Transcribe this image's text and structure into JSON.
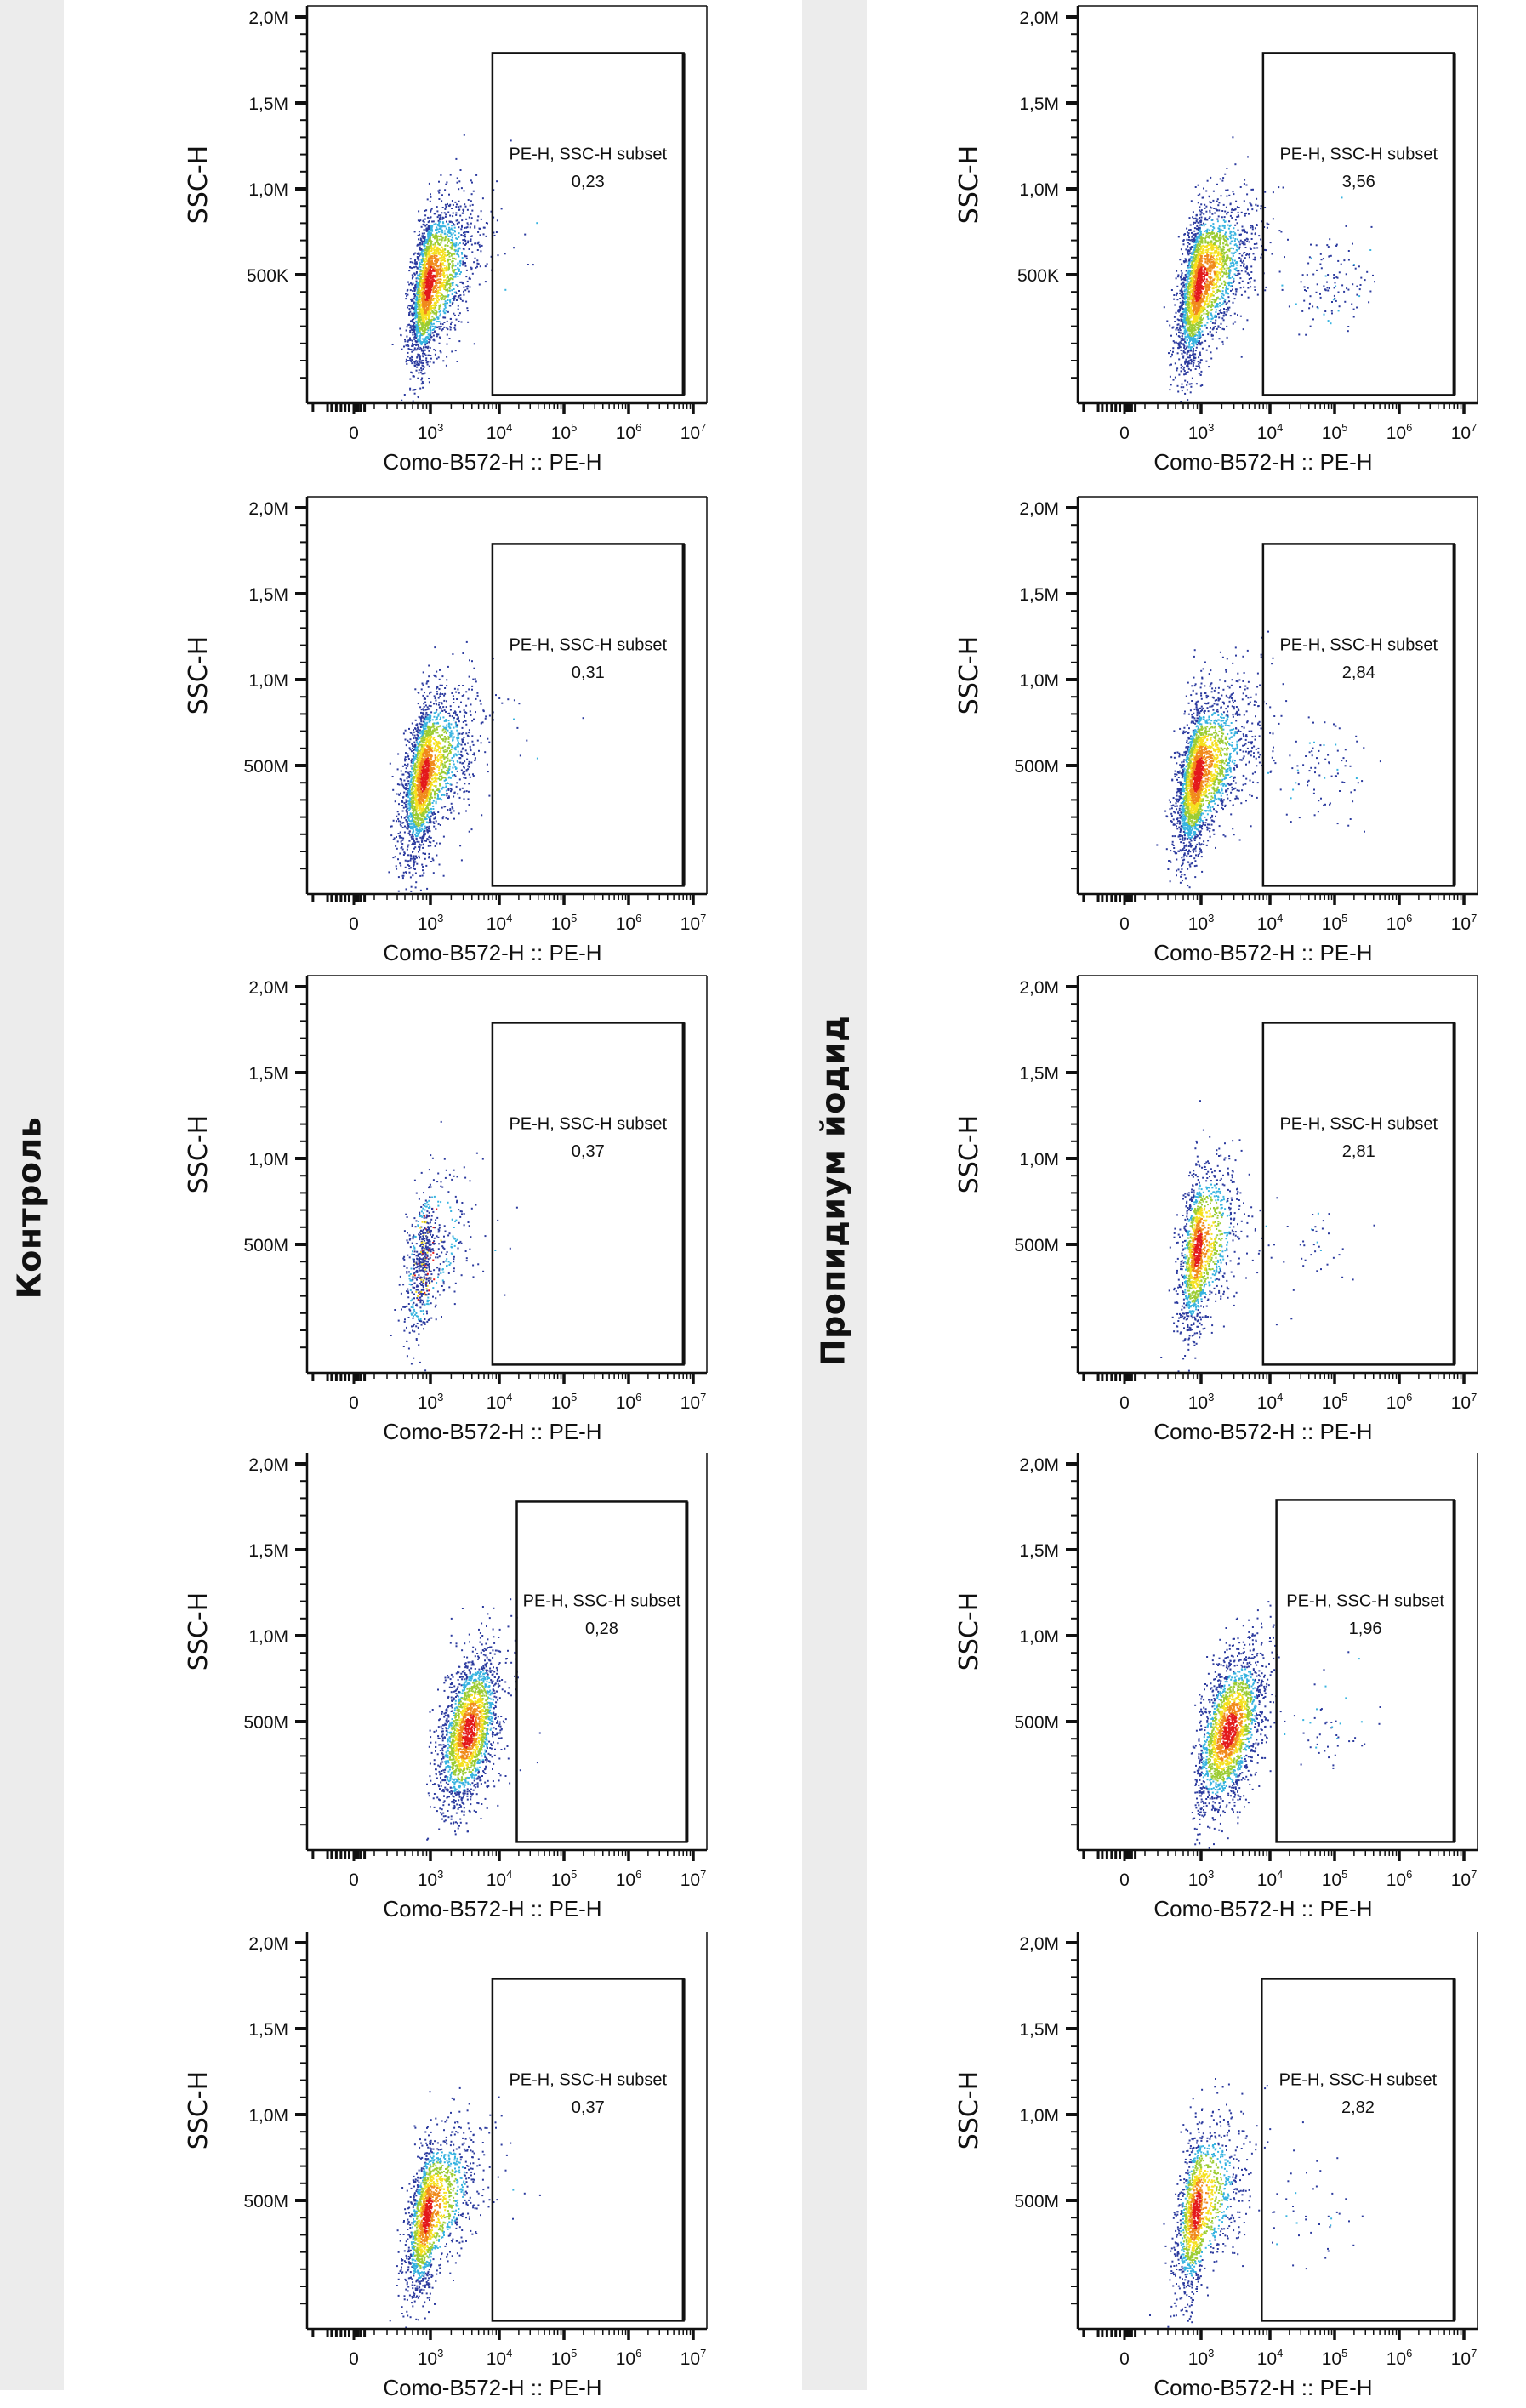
{
  "groups": [
    {
      "label": "Контроль"
    },
    {
      "label": "Пропидиум йодид"
    }
  ],
  "chart_data": {
    "type": "scatter",
    "title": "",
    "xlabel": "Como-B572-H :: PE-H",
    "ylabel": "SSC-H",
    "x_scale": "biexponential (log10 above 10^3)",
    "x_ticks": [
      {
        "label": "0",
        "sup": "",
        "exp": 0
      },
      {
        "label": "10",
        "sup": "3",
        "exp": 3
      },
      {
        "label": "10",
        "sup": "4",
        "exp": 4
      },
      {
        "label": "10",
        "sup": "5",
        "exp": 5
      },
      {
        "label": "10",
        "sup": "6",
        "exp": 6
      },
      {
        "label": "10",
        "sup": "7",
        "exp": 7
      }
    ],
    "ylim_M": [
      -0.25,
      2.06
    ],
    "gate_name": "PE-H, SSC-H subset",
    "panels": [
      {
        "group": 0,
        "row": 0,
        "y_ticks": [
          "2,0M",
          "1,5M",
          "1,0M",
          "500K"
        ],
        "gate_value": "0,23",
        "gate": {
          "x_log": [
            3.9,
            6.85
          ],
          "y_M": [
            -0.2,
            1.79
          ]
        },
        "open_top": false,
        "cluster": {
          "x_log": 2.9,
          "y_M": 0.45,
          "sx": 0.35,
          "sy": 0.2,
          "tilt": 0.35,
          "n": 2600
        },
        "outliers": {
          "x_log": 4.2,
          "y_M": 0.7,
          "n": 12
        }
      },
      {
        "group": 0,
        "row": 1,
        "y_ticks": [
          "2,0M",
          "1,5M",
          "1,0M",
          "500M"
        ],
        "gate_value": "0,31",
        "gate": {
          "x_log": [
            3.9,
            6.85
          ],
          "y_M": [
            -0.2,
            1.79
          ]
        },
        "open_top": false,
        "cluster": {
          "x_log": 2.75,
          "y_M": 0.45,
          "sx": 0.42,
          "sy": 0.2,
          "tilt": 0.3,
          "n": 2600
        },
        "outliers": {
          "x_log": 4.3,
          "y_M": 0.6,
          "n": 10
        }
      },
      {
        "group": 0,
        "row": 2,
        "y_ticks": [
          "2,0M",
          "1,5M",
          "1,0M",
          "500M"
        ],
        "gate_value": "0,37",
        "gate": {
          "x_log": [
            3.9,
            6.85
          ],
          "y_M": [
            -0.2,
            1.79
          ]
        },
        "open_top": false,
        "cluster": {
          "x_log": 2.75,
          "y_M": 0.42,
          "sx": 0.4,
          "sy": 0.2,
          "tilt": 0.3,
          "n": 700
        },
        "outliers": {
          "x_log": 4.0,
          "y_M": 0.6,
          "n": 4
        }
      },
      {
        "group": 0,
        "row": 3,
        "y_ticks": [
          "2,0M",
          "1,5M",
          "1,0M",
          "500M"
        ],
        "gate_value": "0,28",
        "gate": {
          "x_log": [
            4.27,
            6.9
          ],
          "y_M": [
            -0.2,
            1.78
          ]
        },
        "open_top": true,
        "cluster": {
          "x_log": 3.55,
          "y_M": 0.45,
          "sx": 0.22,
          "sy": 0.2,
          "tilt": 0.5,
          "n": 2200
        },
        "outliers": {
          "x_log": 4.5,
          "y_M": 0.4,
          "n": 3
        }
      },
      {
        "group": 0,
        "row": 4,
        "y_ticks": [
          "2,0M",
          "1,5M",
          "1,0M",
          "500M"
        ],
        "gate_value": "0,37",
        "gate": {
          "x_log": [
            3.9,
            6.85
          ],
          "y_M": [
            -0.2,
            1.79
          ]
        },
        "open_top": true,
        "cluster": {
          "x_log": 2.85,
          "y_M": 0.42,
          "sx": 0.4,
          "sy": 0.2,
          "tilt": 0.35,
          "n": 1800
        },
        "outliers": {
          "x_log": 4.3,
          "y_M": 0.6,
          "n": 8
        }
      },
      {
        "group": 1,
        "row": 0,
        "y_ticks": [
          "2,0M",
          "1,5M",
          "1,0M",
          "500K"
        ],
        "gate_value": "3,56",
        "gate": {
          "x_log": [
            3.9,
            6.85
          ],
          "y_M": [
            -0.2,
            1.79
          ]
        },
        "open_top": false,
        "cluster": {
          "x_log": 2.9,
          "y_M": 0.45,
          "sx": 0.4,
          "sy": 0.2,
          "tilt": 0.35,
          "n": 2800
        },
        "outliers": {
          "x_log": 5.0,
          "y_M": 0.45,
          "n": 120
        }
      },
      {
        "group": 1,
        "row": 1,
        "y_ticks": [
          "2,0M",
          "1,5M",
          "1,0M",
          "500M"
        ],
        "gate_value": "2,84",
        "gate": {
          "x_log": [
            3.9,
            6.85
          ],
          "y_M": [
            -0.2,
            1.79
          ]
        },
        "open_top": false,
        "cluster": {
          "x_log": 2.85,
          "y_M": 0.45,
          "sx": 0.42,
          "sy": 0.2,
          "tilt": 0.3,
          "n": 2700
        },
        "outliers": {
          "x_log": 4.8,
          "y_M": 0.5,
          "n": 90
        }
      },
      {
        "group": 1,
        "row": 2,
        "y_ticks": [
          "2,0M",
          "1,5M",
          "1,0M",
          "500M"
        ],
        "gate_value": "2,81",
        "gate": {
          "x_log": [
            3.9,
            6.85
          ],
          "y_M": [
            -0.2,
            1.79
          ]
        },
        "open_top": false,
        "cluster": {
          "x_log": 2.85,
          "y_M": 0.48,
          "sx": 0.35,
          "sy": 0.22,
          "tilt": 0.3,
          "n": 1500
        },
        "outliers": {
          "x_log": 4.6,
          "y_M": 0.5,
          "n": 40
        }
      },
      {
        "group": 1,
        "row": 3,
        "y_ticks": [
          "2,0M",
          "1,5M",
          "1,0M",
          "500M"
        ],
        "gate_value": "1,96",
        "gate": {
          "x_log": [
            4.1,
            6.85
          ],
          "y_M": [
            -0.2,
            1.79
          ]
        },
        "open_top": true,
        "cluster": {
          "x_log": 3.4,
          "y_M": 0.45,
          "sx": 0.25,
          "sy": 0.2,
          "tilt": 0.5,
          "n": 2200
        },
        "outliers": {
          "x_log": 4.9,
          "y_M": 0.5,
          "n": 50
        }
      },
      {
        "group": 1,
        "row": 4,
        "y_ticks": [
          "2,0M",
          "1,5M",
          "1,0M",
          "500M"
        ],
        "gate_value": "2,82",
        "gate": {
          "x_log": [
            3.88,
            6.85
          ],
          "y_M": [
            -0.2,
            1.79
          ]
        },
        "open_top": true,
        "cluster": {
          "x_log": 2.8,
          "y_M": 0.45,
          "sx": 0.4,
          "sy": 0.22,
          "tilt": 0.3,
          "n": 1500
        },
        "outliers": {
          "x_log": 4.7,
          "y_M": 0.45,
          "n": 40
        }
      }
    ],
    "density_colors": [
      "#2b3a9e",
      "#37b3e0",
      "#9ccc33",
      "#f5e01e",
      "#f08a1c",
      "#e31a1c"
    ],
    "grid": false,
    "legend": "none"
  }
}
